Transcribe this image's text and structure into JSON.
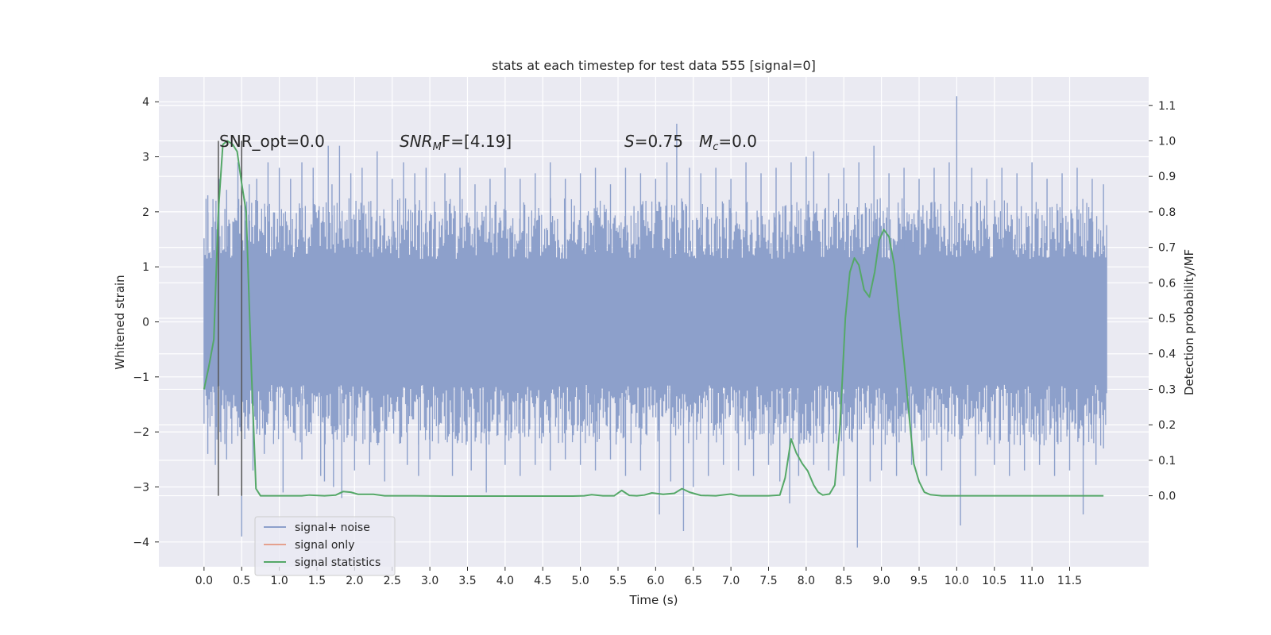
{
  "chart_data": {
    "type": "line",
    "title": "stats at each timestep for test data 555 [signal=0]",
    "xlabel": "Time (s)",
    "ylabel": "Whitened strain",
    "y2label": "Detection probability/MF",
    "xlim": [
      -0.6,
      12.55
    ],
    "ylim": [
      -4.45,
      4.45
    ],
    "y2lim": [
      -0.2,
      1.18
    ],
    "x_ticks": [
      "0.0",
      "0.5",
      "1.0",
      "1.5",
      "2.0",
      "2.5",
      "3.0",
      "3.5",
      "4.0",
      "4.5",
      "5.0",
      "5.5",
      "6.0",
      "6.5",
      "7.0",
      "7.5",
      "8.0",
      "8.5",
      "9.0",
      "9.5",
      "10.0",
      "10.5",
      "11.0",
      "11.5"
    ],
    "y_ticks": [
      "4",
      "3",
      "2",
      "1",
      "0",
      "−1",
      "−2",
      "−3",
      "−4"
    ],
    "y2_ticks": [
      "1.1",
      "1.0",
      "0.9",
      "0.8",
      "0.7",
      "0.6",
      "0.5",
      "0.4",
      "0.3",
      "0.2",
      "0.1",
      "0.0"
    ],
    "grid": true,
    "legend_position": "bottom-left",
    "annotations": {
      "snr_opt": "SNR_opt=0.0",
      "snr_mf_main": "SNR",
      "snr_mf_sub": "M",
      "snr_mf_rest": "F=[4.19]",
      "s_var": "S",
      "s_value": "=0.75",
      "mc_var": "M",
      "mc_sub": "c",
      "mc_value": "=0.0"
    },
    "vertical_markers_x": [
      0.19,
      0.5
    ],
    "series": [
      {
        "name": "signal+ noise",
        "color": "#8da0cb",
        "kind": "noise-band",
        "x_range": [
          0.0,
          12.0
        ],
        "core_amplitude": 1.3,
        "peaks": [
          [
            0.05,
            2.3
          ],
          [
            0.12,
            1.9
          ],
          [
            0.2,
            2.6
          ],
          [
            0.3,
            2.4
          ],
          [
            0.45,
            2.9
          ],
          [
            0.6,
            2.5
          ],
          [
            0.7,
            2.6
          ],
          [
            0.85,
            2.9
          ],
          [
            1.0,
            2.8
          ],
          [
            1.15,
            2.6
          ],
          [
            1.3,
            2.9
          ],
          [
            1.45,
            2.8
          ],
          [
            1.65,
            3.2
          ],
          [
            1.7,
            2.5
          ],
          [
            1.8,
            3.2
          ],
          [
            1.95,
            2.7
          ],
          [
            2.1,
            2.8
          ],
          [
            2.3,
            3.1
          ],
          [
            2.5,
            2.6
          ],
          [
            2.65,
            2.9
          ],
          [
            2.8,
            2.7
          ],
          [
            2.95,
            2.8
          ],
          [
            3.2,
            2.7
          ],
          [
            3.4,
            2.8
          ],
          [
            3.6,
            2.5
          ],
          [
            3.8,
            2.6
          ],
          [
            4.0,
            2.8
          ],
          [
            4.2,
            2.6
          ],
          [
            4.4,
            2.7
          ],
          [
            4.6,
            2.9
          ],
          [
            4.8,
            2.6
          ],
          [
            5.0,
            2.7
          ],
          [
            5.2,
            2.8
          ],
          [
            5.4,
            2.5
          ],
          [
            5.6,
            2.8
          ],
          [
            5.8,
            2.7
          ],
          [
            6.0,
            2.6
          ],
          [
            6.15,
            2.9
          ],
          [
            6.28,
            3.6
          ],
          [
            6.45,
            2.8
          ],
          [
            6.6,
            2.7
          ],
          [
            6.8,
            2.8
          ],
          [
            7.0,
            2.6
          ],
          [
            7.2,
            2.9
          ],
          [
            7.4,
            2.7
          ],
          [
            7.6,
            2.8
          ],
          [
            7.8,
            2.9
          ],
          [
            8.0,
            3.0
          ],
          [
            8.1,
            3.1
          ],
          [
            8.3,
            2.7
          ],
          [
            8.5,
            2.8
          ],
          [
            8.7,
            2.9
          ],
          [
            8.9,
            3.2
          ],
          [
            9.1,
            2.7
          ],
          [
            9.3,
            2.8
          ],
          [
            9.5,
            2.6
          ],
          [
            9.7,
            2.8
          ],
          [
            9.9,
            2.9
          ],
          [
            10.0,
            4.1
          ],
          [
            10.2,
            2.8
          ],
          [
            10.4,
            2.6
          ],
          [
            10.6,
            2.8
          ],
          [
            10.8,
            2.7
          ],
          [
            11.0,
            2.9
          ],
          [
            11.2,
            2.6
          ],
          [
            11.4,
            2.7
          ],
          [
            11.6,
            2.8
          ],
          [
            11.8,
            2.6
          ],
          [
            11.95,
            2.5
          ]
        ],
        "troughs": [
          [
            0.05,
            -2.4
          ],
          [
            0.15,
            -2.6
          ],
          [
            0.3,
            -2.5
          ],
          [
            0.5,
            -3.9
          ],
          [
            0.65,
            -2.7
          ],
          [
            0.8,
            -2.4
          ],
          [
            1.05,
            -3.1
          ],
          [
            1.3,
            -2.5
          ],
          [
            1.55,
            -2.8
          ],
          [
            1.6,
            -2.9
          ],
          [
            1.72,
            -3.0
          ],
          [
            1.83,
            -3.2
          ],
          [
            2.0,
            -2.7
          ],
          [
            2.2,
            -2.6
          ],
          [
            2.4,
            -2.9
          ],
          [
            2.7,
            -2.6
          ],
          [
            2.85,
            -2.8
          ],
          [
            3.0,
            -2.5
          ],
          [
            3.3,
            -2.8
          ],
          [
            3.55,
            -2.7
          ],
          [
            3.75,
            -3.1
          ],
          [
            4.0,
            -2.6
          ],
          [
            4.2,
            -2.8
          ],
          [
            4.4,
            -2.6
          ],
          [
            4.6,
            -2.7
          ],
          [
            4.8,
            -2.5
          ],
          [
            5.0,
            -2.6
          ],
          [
            5.2,
            -2.7
          ],
          [
            5.4,
            -2.5
          ],
          [
            5.6,
            -2.8
          ],
          [
            5.8,
            -2.7
          ],
          [
            6.05,
            -3.5
          ],
          [
            6.2,
            -2.9
          ],
          [
            6.37,
            -3.8
          ],
          [
            6.5,
            -3.0
          ],
          [
            6.7,
            -2.8
          ],
          [
            6.9,
            -2.6
          ],
          [
            7.1,
            -2.7
          ],
          [
            7.3,
            -2.8
          ],
          [
            7.5,
            -2.6
          ],
          [
            7.65,
            -2.9
          ],
          [
            7.78,
            -3.3
          ],
          [
            7.9,
            -2.8
          ],
          [
            8.1,
            -2.6
          ],
          [
            8.3,
            -2.7
          ],
          [
            8.5,
            -2.8
          ],
          [
            8.68,
            -4.1
          ],
          [
            8.85,
            -2.9
          ],
          [
            9.0,
            -2.7
          ],
          [
            9.2,
            -2.8
          ],
          [
            9.4,
            -2.6
          ],
          [
            9.6,
            -2.8
          ],
          [
            9.8,
            -2.7
          ],
          [
            10.05,
            -3.7
          ],
          [
            10.25,
            -2.8
          ],
          [
            10.5,
            -2.6
          ],
          [
            10.7,
            -2.8
          ],
          [
            10.9,
            -2.7
          ],
          [
            11.1,
            -2.6
          ],
          [
            11.3,
            -2.8
          ],
          [
            11.5,
            -2.7
          ],
          [
            11.68,
            -3.5
          ],
          [
            11.85,
            -2.6
          ],
          [
            11.95,
            -2.3
          ]
        ]
      },
      {
        "name": "signal only",
        "color": "#e5a18e",
        "kind": "line",
        "points": []
      },
      {
        "name": "signal statistics",
        "color": "#55a868",
        "kind": "line",
        "axis": "right",
        "points": [
          [
            0.0,
            0.3
          ],
          [
            0.06,
            0.36
          ],
          [
            0.13,
            0.44
          ],
          [
            0.19,
            0.8
          ],
          [
            0.25,
            0.99
          ],
          [
            0.31,
            1.0
          ],
          [
            0.38,
            0.99
          ],
          [
            0.44,
            0.97
          ],
          [
            0.5,
            0.88
          ],
          [
            0.56,
            0.8
          ],
          [
            0.63,
            0.35
          ],
          [
            0.69,
            0.02
          ],
          [
            0.75,
            0.0
          ],
          [
            1.0,
            0.0
          ],
          [
            1.3,
            0.0
          ],
          [
            1.4,
            0.002
          ],
          [
            1.6,
            0.0
          ],
          [
            1.75,
            0.002
          ],
          [
            1.85,
            0.012
          ],
          [
            1.95,
            0.01
          ],
          [
            2.05,
            0.004
          ],
          [
            2.25,
            0.004
          ],
          [
            2.4,
            0.0
          ],
          [
            2.8,
            0.0
          ],
          [
            3.2,
            -0.001
          ],
          [
            3.8,
            -0.001
          ],
          [
            4.4,
            -0.001
          ],
          [
            4.9,
            -0.001
          ],
          [
            5.05,
            0.0
          ],
          [
            5.15,
            0.003
          ],
          [
            5.3,
            0.0
          ],
          [
            5.45,
            0.0
          ],
          [
            5.55,
            0.015
          ],
          [
            5.65,
            0.001
          ],
          [
            5.75,
            0.0
          ],
          [
            5.85,
            0.002
          ],
          [
            5.95,
            0.008
          ],
          [
            6.1,
            0.004
          ],
          [
            6.25,
            0.007
          ],
          [
            6.35,
            0.02
          ],
          [
            6.45,
            0.01
          ],
          [
            6.6,
            0.001
          ],
          [
            6.8,
            0.0
          ],
          [
            7.0,
            0.005
          ],
          [
            7.1,
            0.0
          ],
          [
            7.5,
            0.0
          ],
          [
            7.65,
            0.002
          ],
          [
            7.72,
            0.05
          ],
          [
            7.8,
            0.16
          ],
          [
            7.87,
            0.12
          ],
          [
            7.95,
            0.09
          ],
          [
            8.02,
            0.07
          ],
          [
            8.1,
            0.03
          ],
          [
            8.16,
            0.01
          ],
          [
            8.22,
            0.002
          ],
          [
            8.31,
            0.005
          ],
          [
            8.38,
            0.03
          ],
          [
            8.45,
            0.2
          ],
          [
            8.52,
            0.5
          ],
          [
            8.58,
            0.63
          ],
          [
            8.64,
            0.67
          ],
          [
            8.7,
            0.65
          ],
          [
            8.77,
            0.58
          ],
          [
            8.84,
            0.56
          ],
          [
            8.91,
            0.63
          ],
          [
            8.97,
            0.72
          ],
          [
            9.03,
            0.75
          ],
          [
            9.1,
            0.73
          ],
          [
            9.17,
            0.65
          ],
          [
            9.23,
            0.52
          ],
          [
            9.3,
            0.38
          ],
          [
            9.37,
            0.22
          ],
          [
            9.43,
            0.09
          ],
          [
            9.5,
            0.04
          ],
          [
            9.57,
            0.01
          ],
          [
            9.65,
            0.003
          ],
          [
            9.8,
            0.0
          ],
          [
            10.5,
            0.0
          ],
          [
            11.0,
            0.0
          ],
          [
            11.5,
            0.0
          ],
          [
            11.95,
            0.0
          ]
        ]
      }
    ]
  }
}
